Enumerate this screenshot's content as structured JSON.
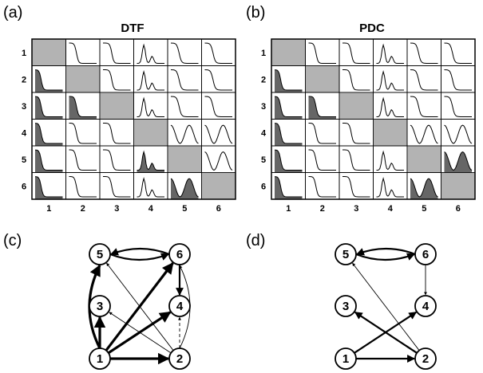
{
  "panels": {
    "a": {
      "tag": "(a)",
      "title": "DTF"
    },
    "b": {
      "tag": "(b)",
      "title": "PDC"
    },
    "c": {
      "tag": "(c)"
    },
    "d": {
      "tag": "(d)"
    }
  },
  "matrix_labels": [
    "1",
    "2",
    "3",
    "4",
    "5",
    "6"
  ],
  "graph_nodes": [
    "1",
    "2",
    "3",
    "4",
    "5",
    "6"
  ],
  "graph_c_edges": [
    {
      "from": "1",
      "to": "5",
      "weight": "strong"
    },
    {
      "from": "1",
      "to": "3",
      "weight": "strong"
    },
    {
      "from": "1",
      "to": "2",
      "weight": "strong"
    },
    {
      "from": "1",
      "to": "6",
      "weight": "strong"
    },
    {
      "from": "1",
      "to": "4",
      "weight": "strong"
    },
    {
      "from": "5",
      "to": "6",
      "weight": "medium"
    },
    {
      "from": "6",
      "to": "5",
      "weight": "medium"
    },
    {
      "from": "6",
      "to": "4",
      "weight": "medium"
    },
    {
      "from": "2",
      "to": "5",
      "weight": "thin"
    },
    {
      "from": "2",
      "to": "3",
      "weight": "thin"
    },
    {
      "from": "2",
      "to": "6",
      "weight": "thin"
    },
    {
      "from": "2",
      "to": "4",
      "weight": "dashed"
    }
  ],
  "graph_d_edges": [
    {
      "from": "5",
      "to": "6",
      "weight": "medium"
    },
    {
      "from": "6",
      "to": "5",
      "weight": "medium"
    },
    {
      "from": "6",
      "to": "4",
      "weight": "thin"
    },
    {
      "from": "1",
      "to": "2",
      "weight": "medium"
    },
    {
      "from": "1",
      "to": "4",
      "weight": "medium"
    },
    {
      "from": "2",
      "to": "3",
      "weight": "medium"
    },
    {
      "from": "2",
      "to": "5",
      "weight": "thin"
    }
  ]
}
